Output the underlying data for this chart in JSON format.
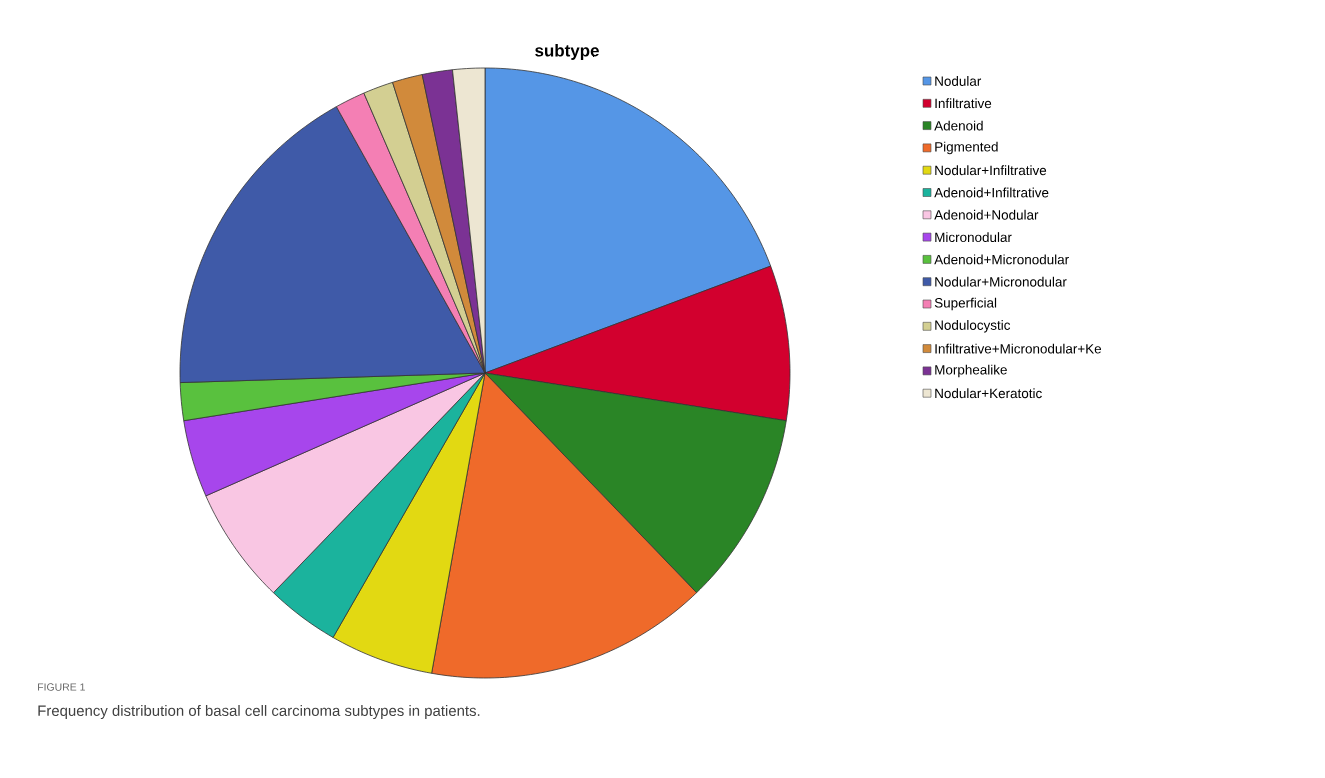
{
  "chart_data": {
    "type": "pie",
    "title": "subtype",
    "categories": [
      "Nodular",
      "Infiltrative",
      "Adenoid",
      "Pigmented",
      "Nodular+Infiltrative",
      "Adenoid+Infiltrative",
      "Adenoid+Nodular",
      "Micronodular",
      "Adenoid+Micronodular",
      "Nodular+Micronodular",
      "Superficial",
      "Nodulocystic",
      "Infiltrative+Micronodular+Ke",
      "Morphealike",
      "Nodular+Keratotic"
    ],
    "values": [
      19.3,
      8.2,
      10.3,
      15.0,
      5.5,
      3.9,
      6.2,
      4.1,
      2.0,
      17.4,
      1.6,
      1.6,
      1.6,
      1.6,
      1.7
    ],
    "colors": [
      "#5596e6",
      "#d2002e",
      "#2a8526",
      "#ef6a2a",
      "#e2d912",
      "#1bb39d",
      "#f9c6e3",
      "#a746ec",
      "#59c13e",
      "#3f5aa8",
      "#f47fb4",
      "#d3cf92",
      "#d18a3b",
      "#7b3294",
      "#ede6d2"
    ],
    "legend": "right",
    "annotations": [
      "FIGURE 1",
      "Frequency distribution of basal cell carcinoma subtypes in patients."
    ]
  }
}
